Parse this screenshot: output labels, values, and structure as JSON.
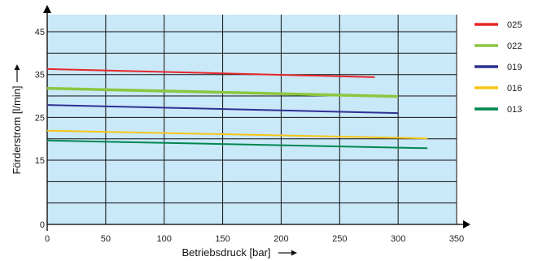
{
  "chart_data": {
    "type": "line",
    "xlabel": "Betriebsdruck  [bar]",
    "ylabel": "Förderstrom  [l/min]",
    "xlim": [
      0,
      350
    ],
    "ylim": [
      0,
      49
    ],
    "x_ticks": [
      0,
      50,
      100,
      150,
      200,
      250,
      300,
      350
    ],
    "y_ticks": [
      0,
      15,
      25,
      35,
      45
    ],
    "grid_x": [
      0,
      50,
      100,
      150,
      200,
      250,
      300,
      350
    ],
    "grid_y": [
      5,
      10,
      15,
      20,
      25,
      30,
      35,
      40,
      45
    ],
    "grid": true,
    "plot_background": "#c9e8f8",
    "grid_color": "#111111",
    "legend_position": "right",
    "series": [
      {
        "name": "025",
        "color": "#e8262a",
        "width": 2,
        "x": [
          0,
          280
        ],
        "y": [
          36.3,
          34.4
        ]
      },
      {
        "name": "022",
        "color": "#8cc63f",
        "width": 3.5,
        "x": [
          0,
          300
        ],
        "y": [
          31.8,
          29.9
        ]
      },
      {
        "name": "019",
        "color": "#2e3192",
        "width": 2,
        "x": [
          0,
          300
        ],
        "y": [
          27.9,
          26.0
        ]
      },
      {
        "name": "016",
        "color": "#f7c516",
        "width": 2,
        "x": [
          0,
          325
        ],
        "y": [
          21.9,
          20.1
        ]
      },
      {
        "name": "013",
        "color": "#00874f",
        "width": 2,
        "x": [
          0,
          325
        ],
        "y": [
          19.6,
          17.8
        ]
      }
    ]
  }
}
